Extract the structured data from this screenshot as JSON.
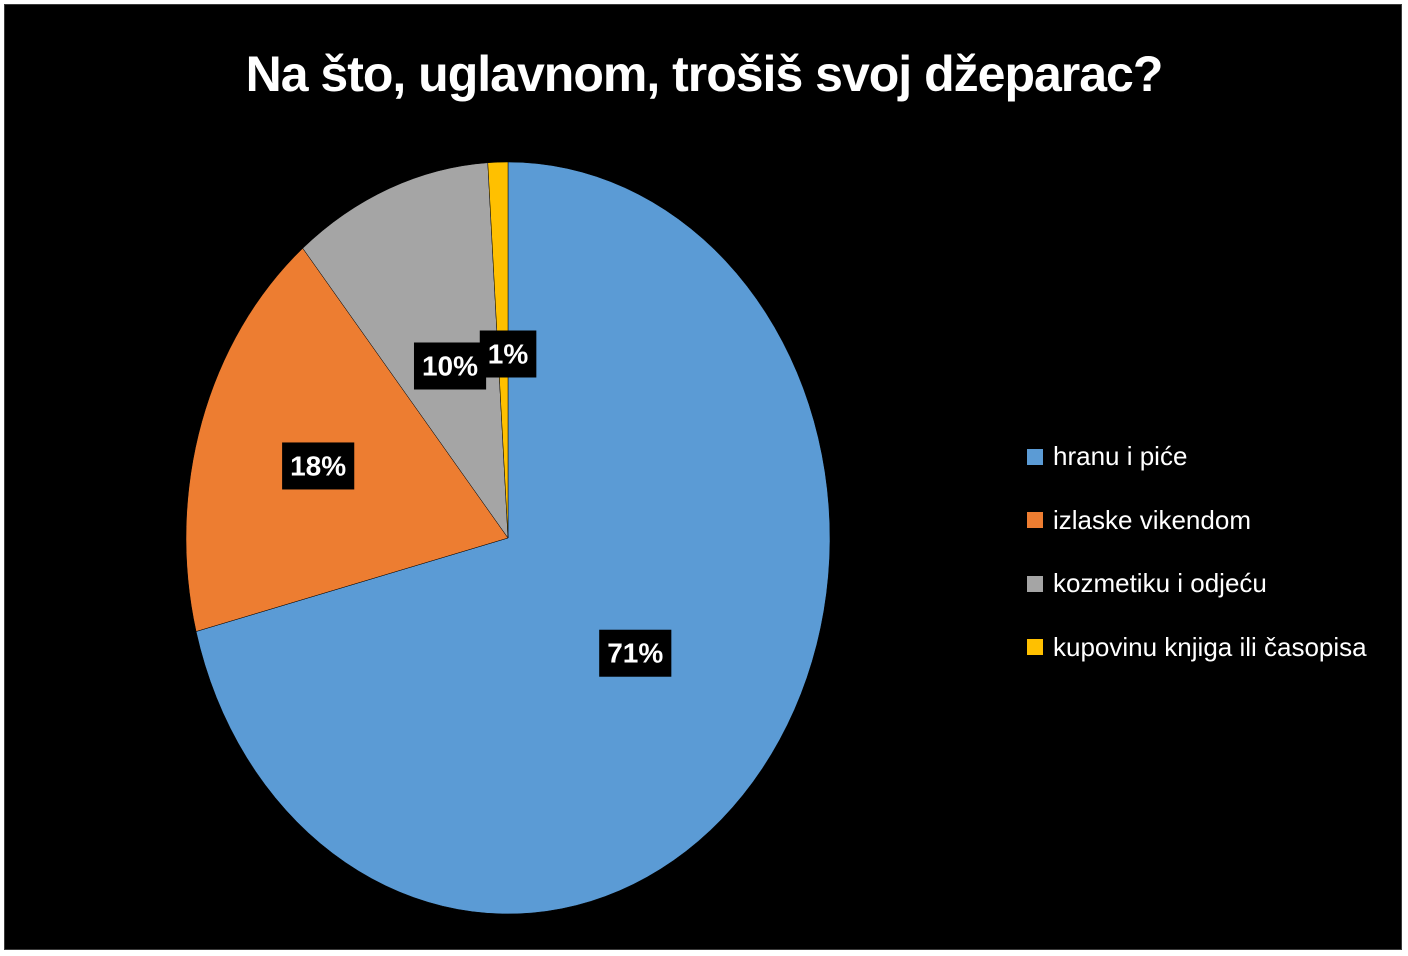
{
  "chart_data": {
    "type": "pie",
    "title": "Na što, uglavnom, trošiš svoj džeparac?",
    "categories": [
      "hranu i piće",
      "izlaske vikendom",
      "kozmetiku i odjeću",
      "kupovinu knjiga ili časopisa"
    ],
    "values": [
      71,
      18,
      10,
      1
    ],
    "value_labels": [
      "71%",
      "18%",
      "10%",
      "1%"
    ],
    "colors": [
      "#5b9bd5",
      "#ed7d31",
      "#a5a5a5",
      "#ffc000"
    ],
    "legend_position": "right",
    "background": "#000000"
  }
}
